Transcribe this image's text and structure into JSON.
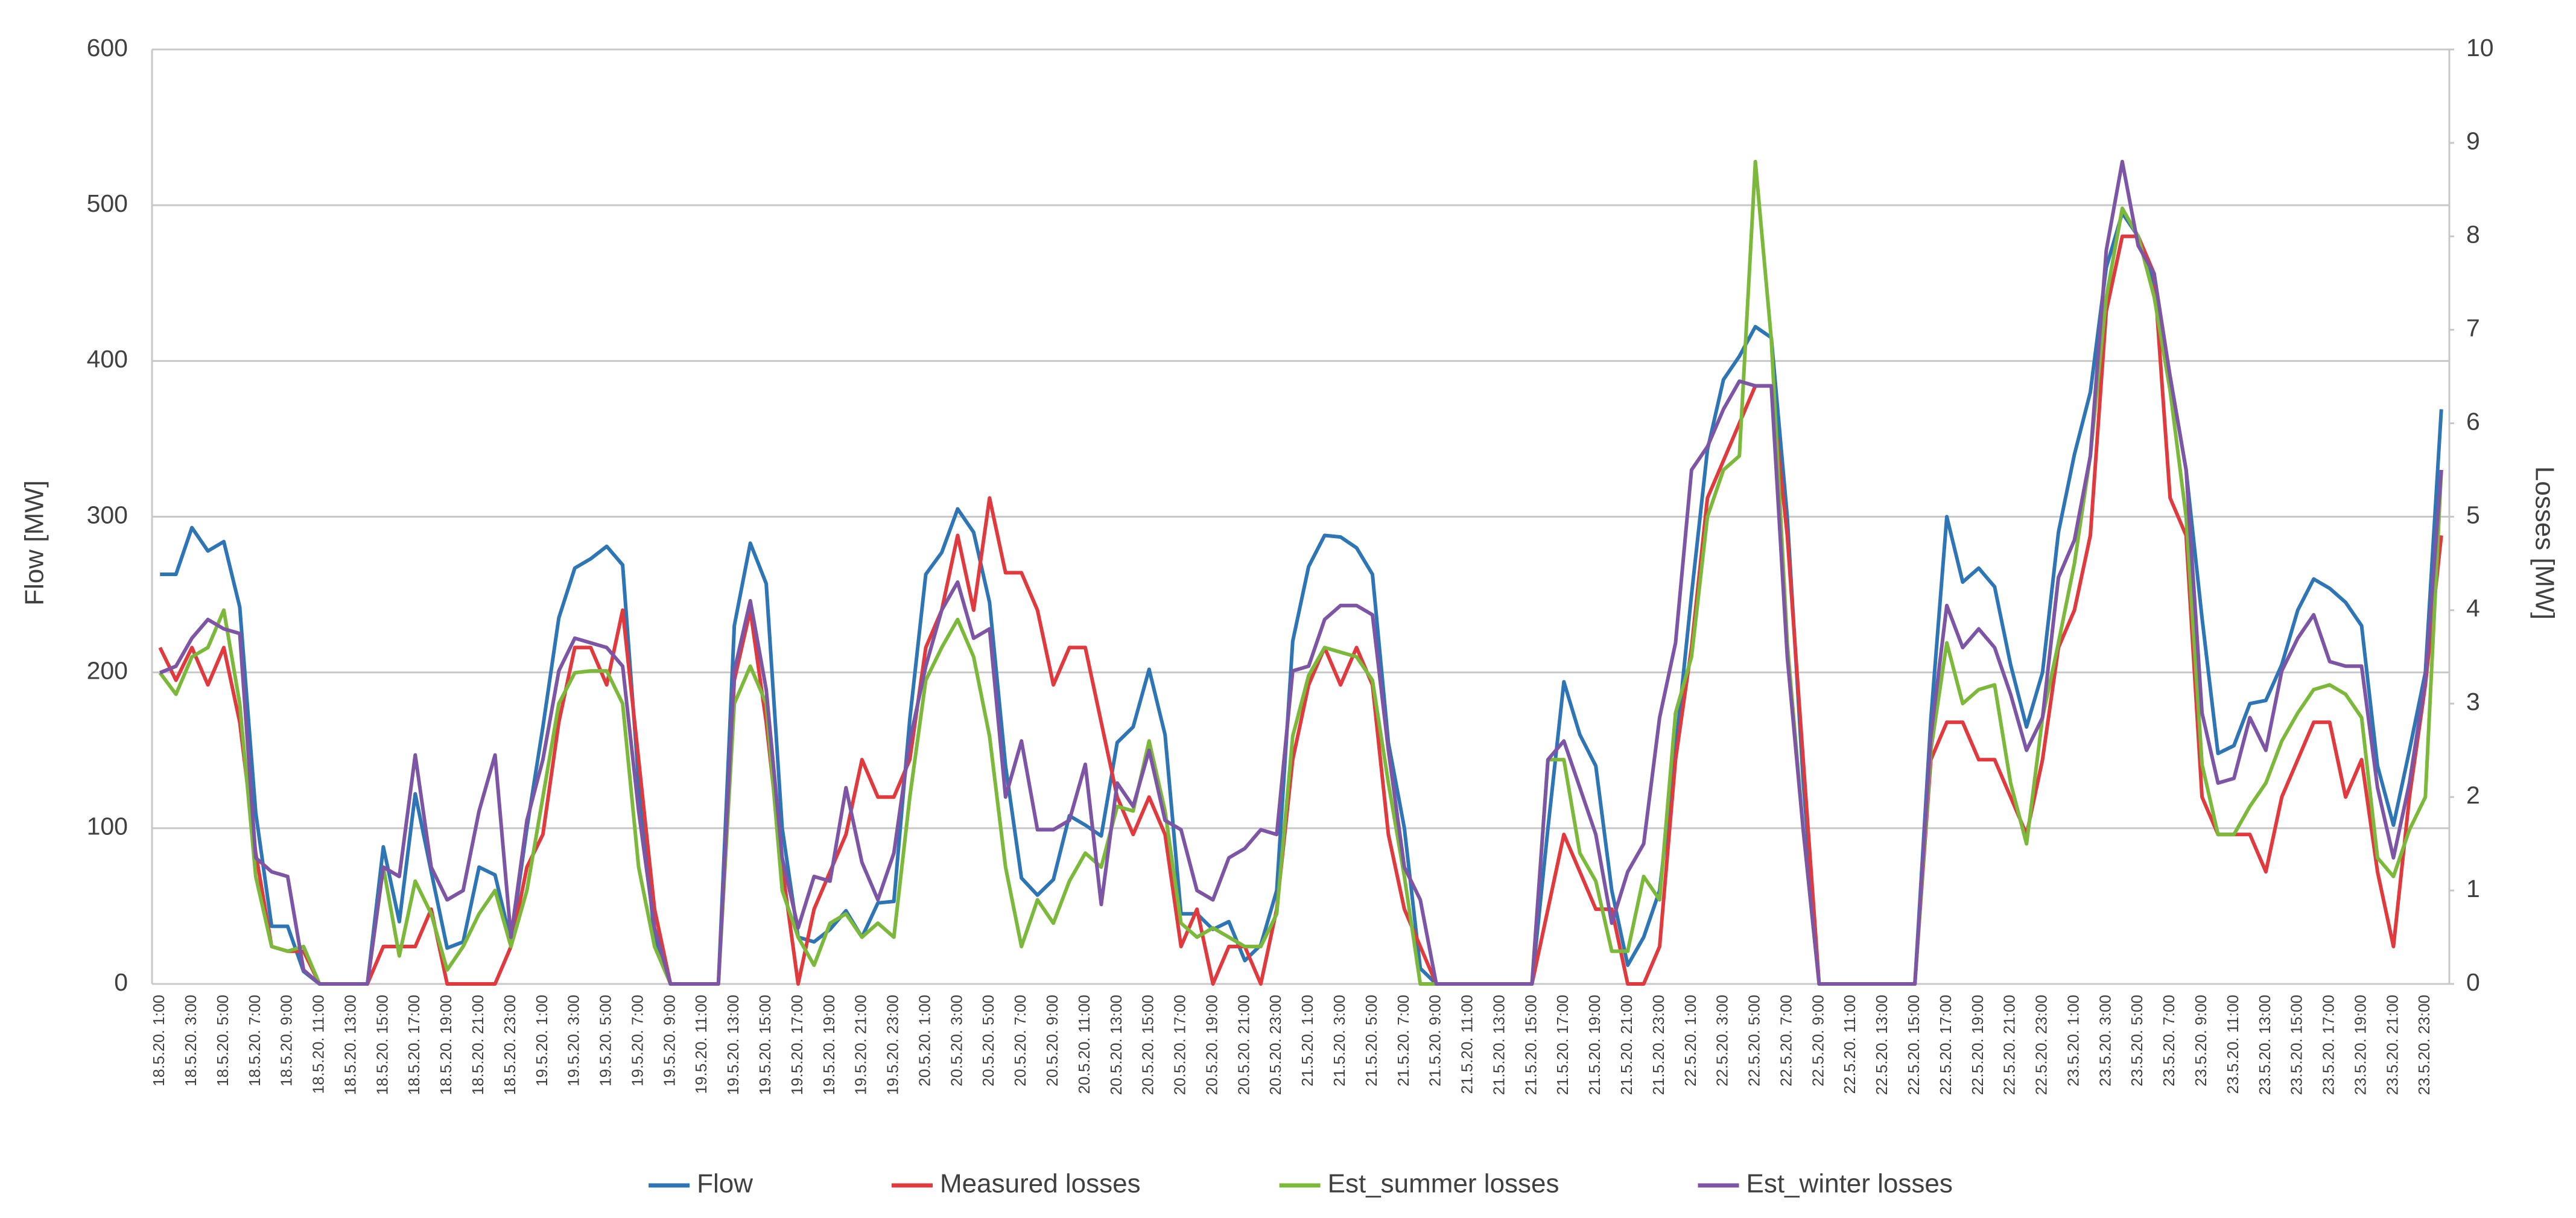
{
  "chart_data": {
    "type": "line",
    "y_label": "Flow [MW]",
    "y2_label": "Losses [MW]",
    "categories": [
      "18.5.20. 1:00",
      null,
      "18.5.20. 3:00",
      null,
      "18.5.20. 5:00",
      null,
      "18.5.20. 7:00",
      null,
      "18.5.20. 9:00",
      null,
      "18.5.20. 11:00",
      null,
      "18.5.20. 13:00",
      null,
      "18.5.20. 15:00",
      null,
      "18.5.20. 17:00",
      null,
      "18.5.20. 19:00",
      null,
      "18.5.20. 21:00",
      null,
      "18.5.20. 23:00",
      null,
      "19.5.20. 1:00",
      null,
      "19.5.20. 3:00",
      null,
      "19.5.20. 5:00",
      null,
      "19.5.20. 7:00",
      null,
      "19.5.20. 9:00",
      null,
      "19.5.20. 11:00",
      null,
      "19.5.20. 13:00",
      null,
      "19.5.20. 15:00",
      null,
      "19.5.20. 17:00",
      null,
      "19.5.20. 19:00",
      null,
      "19.5.20. 21:00",
      null,
      "19.5.20. 23:00",
      null,
      "20.5.20. 1:00",
      null,
      "20.5.20. 3:00",
      null,
      "20.5.20. 5:00",
      null,
      "20.5.20. 7:00",
      null,
      "20.5.20. 9:00",
      null,
      "20.5.20. 11:00",
      null,
      "20.5.20. 13:00",
      null,
      "20.5.20. 15:00",
      null,
      "20.5.20. 17:00",
      null,
      "20.5.20. 19:00",
      null,
      "20.5.20. 21:00",
      null,
      "20.5.20. 23:00",
      null,
      "21.5.20. 1:00",
      null,
      "21.5.20. 3:00",
      null,
      "21.5.20. 5:00",
      null,
      "21.5.20. 7:00",
      null,
      "21.5.20. 9:00",
      null,
      "21.5.20. 11:00",
      null,
      "21.5.20. 13:00",
      null,
      "21.5.20. 15:00",
      null,
      "21.5.20. 17:00",
      null,
      "21.5.20. 19:00",
      null,
      "21.5.20. 21:00",
      null,
      "21.5.20. 23:00",
      null,
      "22.5.20. 1:00",
      null,
      "22.5.20. 3:00",
      null,
      "22.5.20. 5:00",
      null,
      "22.5.20. 7:00",
      null,
      "22.5.20. 9:00",
      null,
      "22.5.20. 11:00",
      null,
      "22.5.20. 13:00",
      null,
      "22.5.20. 15:00",
      null,
      "22.5.20. 17:00",
      null,
      "22.5.20. 19:00",
      null,
      "22.5.20. 21:00",
      null,
      "22.5.20. 23:00",
      null,
      "23.5.20. 1:00",
      null,
      "23.5.20. 3:00",
      null,
      "23.5.20. 5:00",
      null,
      "23.5.20. 7:00",
      null,
      "23.5.20. 9:00",
      null,
      "23.5.20. 11:00",
      null,
      "23.5.20. 13:00",
      null,
      "23.5.20. 15:00",
      null,
      "23.5.20. 17:00",
      null,
      "23.5.20. 19:00",
      null,
      "23.5.20. 21:00",
      null,
      "23.5.20. 23:00",
      null
    ],
    "series": [
      {
        "name": "Flow",
        "color": "#2e75b6",
        "values": [
          263,
          263,
          293,
          278,
          284,
          242,
          110,
          37,
          37,
          8,
          0,
          0,
          0,
          0,
          88,
          40,
          122,
          72,
          23,
          27,
          75,
          70,
          27,
          100,
          165,
          235,
          267,
          273,
          281,
          269,
          130,
          30,
          0,
          0,
          0,
          0,
          230,
          283,
          257,
          100,
          30,
          27,
          35,
          47,
          30,
          52,
          53,
          170,
          263,
          277,
          305,
          290,
          245,
          140,
          68,
          57,
          67,
          108,
          102,
          95,
          155,
          165,
          202,
          160,
          45,
          45,
          35,
          40,
          15,
          25,
          60,
          220,
          268,
          288,
          287,
          280,
          263,
          155,
          100,
          10,
          0,
          0,
          0,
          0,
          0,
          0,
          0,
          100,
          194,
          160,
          140,
          60,
          12,
          30,
          60,
          150,
          250,
          343,
          388,
          403,
          422,
          415,
          300,
          130,
          0,
          0,
          0,
          0,
          0,
          0,
          0,
          170,
          300,
          258,
          267,
          255,
          205,
          165,
          200,
          290,
          340,
          380,
          460,
          495,
          480,
          450,
          390,
          330,
          235,
          148,
          153,
          180,
          182,
          205,
          240,
          260,
          254,
          245,
          230,
          140,
          102,
          150,
          200,
          369
        ]
      },
      {
        "name": "Measured losses",
        "color": "#e0393e",
        "axis": "y2",
        "values": [
          3.6,
          3.25,
          3.6,
          3.2,
          3.6,
          2.8,
          1.4,
          0.4,
          0.35,
          0.35,
          0,
          0,
          0,
          0,
          0.4,
          0.4,
          0.4,
          0.8,
          0,
          0,
          0,
          0,
          0.4,
          1.25,
          1.6,
          2.8,
          3.6,
          3.6,
          3.2,
          4.0,
          2.4,
          0.8,
          0,
          0,
          0,
          0,
          3.25,
          4.0,
          2.8,
          1.25,
          0,
          0.8,
          1.2,
          1.6,
          2.4,
          2.0,
          2.0,
          2.4,
          3.6,
          4.0,
          4.8,
          4.0,
          5.2,
          4.4,
          4.4,
          4.0,
          3.2,
          3.6,
          3.6,
          2.8,
          2.0,
          1.6,
          2.0,
          1.6,
          0.4,
          0.8,
          0,
          0.4,
          0.4,
          0,
          0.8,
          2.4,
          3.2,
          3.6,
          3.2,
          3.6,
          3.2,
          1.6,
          0.8,
          0.4,
          0,
          0,
          0,
          0,
          0,
          0,
          0,
          0.8,
          1.6,
          1.2,
          0.8,
          0.8,
          0,
          0,
          0.4,
          2.4,
          3.6,
          5.2,
          5.6,
          6.0,
          6.4,
          6.4,
          4.8,
          2.4,
          0,
          0,
          0,
          0,
          0,
          0,
          0,
          2.4,
          2.8,
          2.8,
          2.4,
          2.4,
          2.0,
          1.6,
          2.4,
          3.6,
          4.0,
          4.8,
          7.2,
          8.0,
          8.0,
          7.6,
          5.2,
          4.8,
          2.0,
          1.6,
          1.6,
          1.6,
          1.2,
          2.0,
          2.4,
          2.8,
          2.8,
          2.0,
          2.4,
          1.2,
          0.4,
          2.0,
          3.2,
          4.8
        ]
      },
      {
        "name": "Est_summer losses",
        "color": "#7cb83a",
        "axis": "y2",
        "values": [
          3.33,
          3.1,
          3.5,
          3.6,
          4.0,
          3.0,
          1.15,
          0.4,
          0.35,
          0.4,
          0,
          0,
          0,
          0,
          1.25,
          0.3,
          1.1,
          0.75,
          0.15,
          0.4,
          0.75,
          1.0,
          0.4,
          1.0,
          2.0,
          3.0,
          3.33,
          3.35,
          3.35,
          3.0,
          1.25,
          0.4,
          0,
          0,
          0,
          0,
          3.0,
          3.4,
          3.0,
          1.0,
          0.5,
          0.2,
          0.65,
          0.75,
          0.5,
          0.65,
          0.5,
          2.0,
          3.25,
          3.6,
          3.9,
          3.5,
          2.65,
          1.25,
          0.4,
          0.9,
          0.65,
          1.1,
          1.4,
          1.25,
          1.9,
          1.85,
          2.6,
          1.85,
          0.65,
          0.5,
          0.6,
          0.5,
          0.4,
          0.4,
          0.75,
          2.65,
          3.3,
          3.6,
          3.55,
          3.5,
          3.25,
          2.15,
          1.15,
          0,
          0,
          0,
          0,
          0,
          0,
          0,
          0,
          2.4,
          2.4,
          1.4,
          1.1,
          0.35,
          0.35,
          1.15,
          0.9,
          2.9,
          3.5,
          5.0,
          5.5,
          5.65,
          8.8,
          6.9,
          3.65,
          1.65,
          0,
          0,
          0,
          0,
          0,
          0,
          0,
          2.5,
          3.65,
          3.0,
          3.15,
          3.2,
          2.15,
          1.5,
          2.85,
          3.65,
          4.5,
          5.65,
          7.35,
          8.3,
          8.0,
          7.35,
          6.35,
          5.0,
          2.35,
          1.6,
          1.6,
          1.9,
          2.15,
          2.6,
          2.9,
          3.15,
          3.2,
          3.1,
          2.85,
          1.35,
          1.15,
          1.65,
          2.0,
          5.5
        ]
      },
      {
        "name": "Est_winter losses",
        "color": "#7d55a5",
        "axis": "y2",
        "values": [
          3.33,
          3.4,
          3.7,
          3.9,
          3.8,
          3.75,
          1.35,
          1.2,
          1.15,
          0.15,
          0,
          0,
          0,
          0,
          1.25,
          1.15,
          2.45,
          1.25,
          0.9,
          1.0,
          1.85,
          2.45,
          0.5,
          1.75,
          2.4,
          3.35,
          3.7,
          3.65,
          3.6,
          3.4,
          1.85,
          0.6,
          0,
          0,
          0,
          0,
          3.35,
          4.1,
          3.15,
          1.35,
          0.6,
          1.15,
          1.1,
          2.1,
          1.3,
          0.9,
          1.4,
          2.6,
          3.4,
          4.0,
          4.3,
          3.7,
          3.8,
          2.0,
          2.6,
          1.65,
          1.65,
          1.75,
          2.35,
          0.85,
          2.15,
          1.9,
          2.5,
          1.75,
          1.65,
          1.0,
          0.9,
          1.35,
          1.45,
          1.65,
          1.6,
          3.35,
          3.4,
          3.9,
          4.05,
          4.05,
          3.95,
          2.5,
          1.25,
          0.9,
          0,
          0,
          0,
          0,
          0,
          0,
          0,
          2.4,
          2.6,
          2.1,
          1.6,
          0.65,
          1.2,
          1.5,
          2.85,
          3.65,
          5.5,
          5.75,
          6.15,
          6.45,
          6.4,
          6.4,
          3.5,
          1.65,
          0,
          0,
          0,
          0,
          0,
          0,
          0,
          2.65,
          4.05,
          3.6,
          3.8,
          3.6,
          3.1,
          2.5,
          2.85,
          4.35,
          4.75,
          5.65,
          7.85,
          8.8,
          7.9,
          7.6,
          6.5,
          5.5,
          2.9,
          2.15,
          2.2,
          2.85,
          2.5,
          3.35,
          3.7,
          3.95,
          3.45,
          3.4,
          3.4,
          2.1,
          1.35,
          2.15,
          3.25,
          5.5
        ]
      }
    ],
    "ylim": [
      0,
      600
    ],
    "yticks": [
      0,
      100,
      200,
      300,
      400,
      500,
      600
    ],
    "y2lim": [
      0,
      10
    ],
    "y2ticks": [
      0,
      1,
      2,
      3,
      4,
      5,
      6,
      7,
      8,
      9,
      10
    ],
    "grid": true,
    "legend": "bottom"
  }
}
